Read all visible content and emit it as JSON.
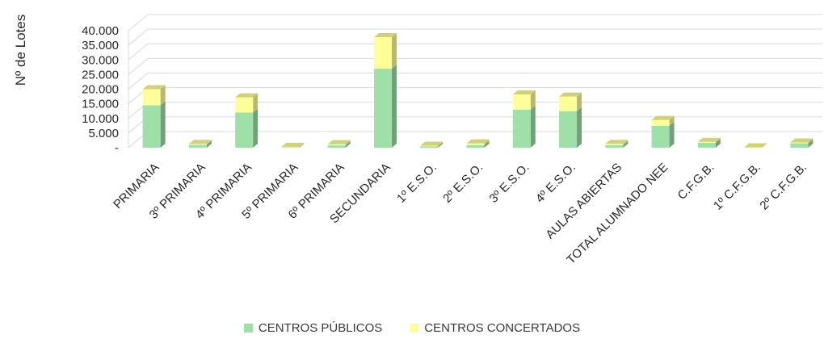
{
  "chart_data": {
    "type": "bar",
    "stacked": true,
    "three_d": true,
    "ylabel": "Nº de Lotes",
    "ylim": [
      0,
      40000
    ],
    "yticks": [
      "-",
      "5.000",
      "10.000",
      "15.000",
      "20.000",
      "25.000",
      "30.000",
      "35.000",
      "40.000"
    ],
    "grid": true,
    "legend_position": "bottom",
    "categories": [
      "PRIMARIA",
      "3º PRIMARIA",
      "4º PRIMARIA",
      "5º PRIMARIA",
      "6º PRIMARIA",
      "SECUNDARIA",
      "1º E.S.O.",
      "2º E.S.O.",
      "3º E.S.O.",
      "4º E.S.O.",
      "AULAS ABIERTAS",
      "TOTAL ALUMNADO NEE",
      "C.F.G.B.",
      "1º C.F.G.B.",
      "2º C.F.G.B."
    ],
    "series": [
      {
        "name": "CENTROS PÚBLICOS",
        "color": "#9fe0a8",
        "values": [
          14500,
          1000,
          12000,
          200,
          800,
          27000,
          500,
          900,
          13000,
          12500,
          900,
          7500,
          1700,
          100,
          1500
        ]
      },
      {
        "name": "CENTROS CONCERTADOS",
        "color": "#ffff99",
        "values": [
          5500,
          300,
          5200,
          100,
          400,
          10800,
          200,
          600,
          5200,
          5000,
          400,
          2000,
          300,
          50,
          300
        ]
      }
    ]
  }
}
